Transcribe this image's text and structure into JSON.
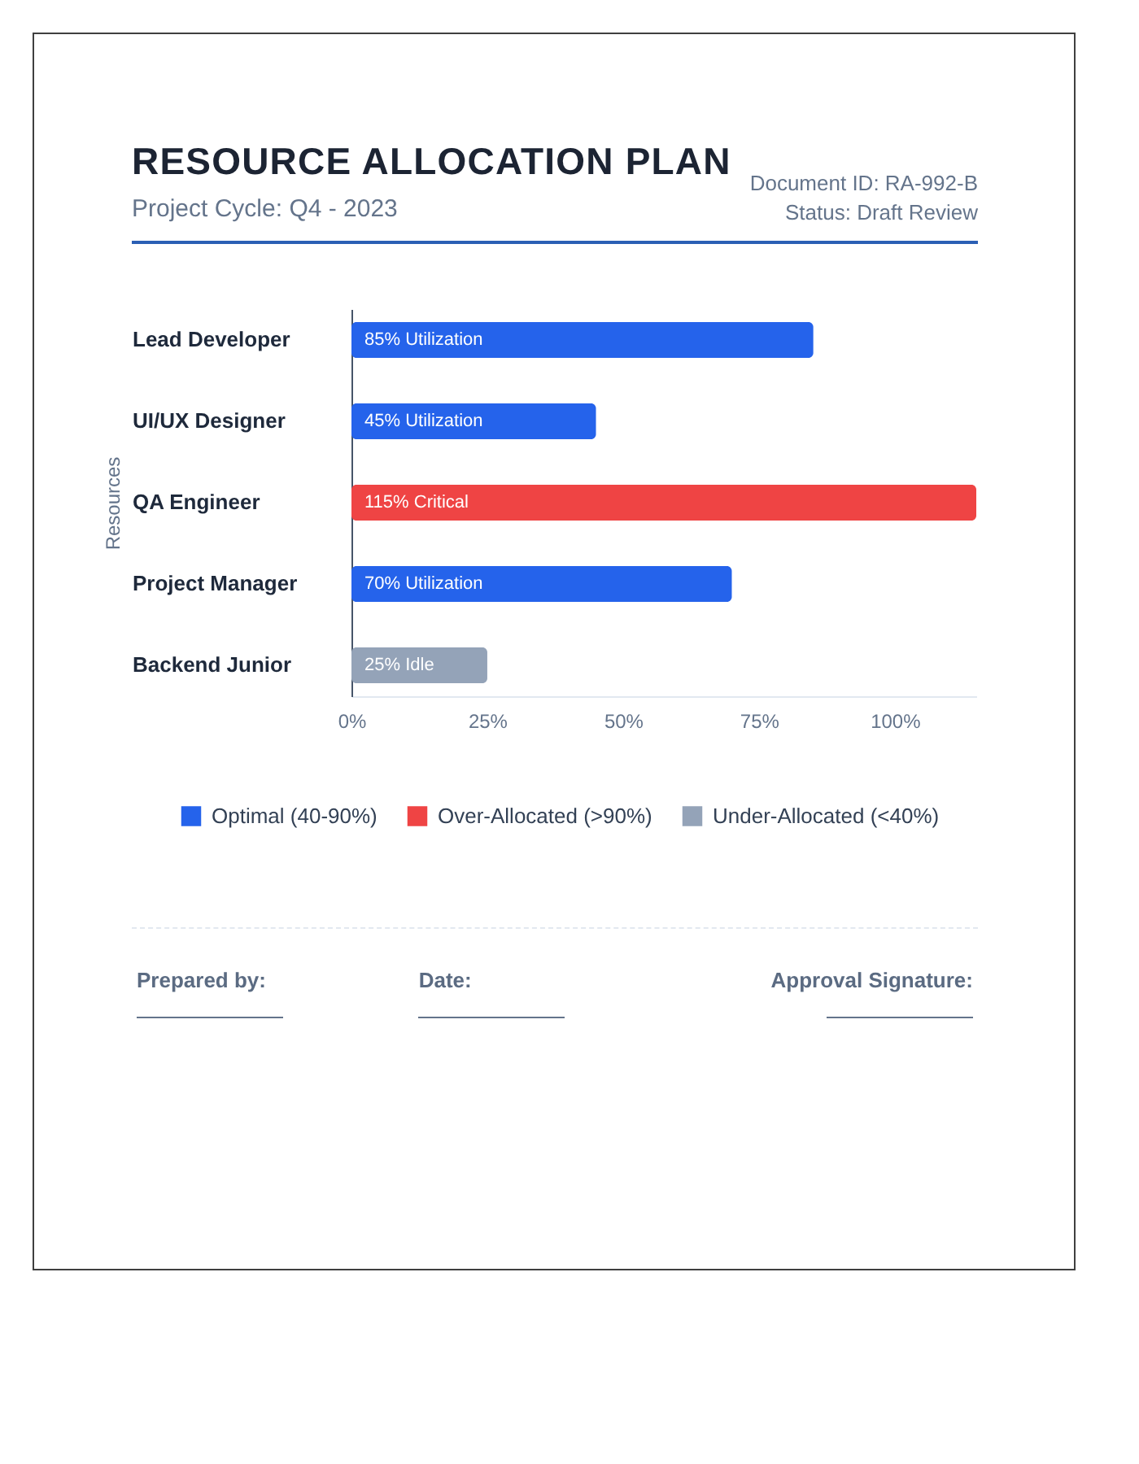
{
  "chart_data": {
    "type": "bar",
    "orientation": "horizontal",
    "title": "RESOURCE ALLOCATION PLAN",
    "subtitle": "Project Cycle: Q4 - 2023",
    "ylabel": "Resources",
    "categories": [
      "Lead Developer",
      "UI/UX Designer",
      "QA Engineer",
      "Project Manager",
      "Backend Junior"
    ],
    "series": [
      {
        "name": "Optimal (40-90%)",
        "color": "#2563eb",
        "values": [
          85,
          45,
          null,
          70,
          null
        ],
        "value_labels": [
          "85% Utilization",
          "45% Utilization",
          null,
          "70% Utilization",
          null
        ]
      },
      {
        "name": "Over-Allocated (>90%)",
        "color": "#ef4444",
        "values": [
          null,
          null,
          115,
          null,
          null
        ],
        "value_labels": [
          null,
          null,
          "115% Critical",
          null,
          null
        ]
      },
      {
        "name": "Under-Allocated (<40%)",
        "color": "#94a3b8",
        "values": [
          null,
          null,
          null,
          null,
          25
        ],
        "value_labels": [
          null,
          null,
          null,
          null,
          "25% Idle"
        ]
      }
    ],
    "xlim": [
      0,
      115
    ],
    "xticks": [
      {
        "value": 0,
        "label": "0%"
      },
      {
        "value": 25,
        "label": "25%"
      },
      {
        "value": 50,
        "label": "50%"
      },
      {
        "value": 75,
        "label": "75%"
      },
      {
        "value": 100,
        "label": "100%"
      }
    ],
    "legend": "bottom",
    "annotations": [
      "Document ID: RA-992-B",
      "Status: Draft Review",
      "Prepared by:",
      "Date:",
      "Approval Signature:"
    ]
  }
}
